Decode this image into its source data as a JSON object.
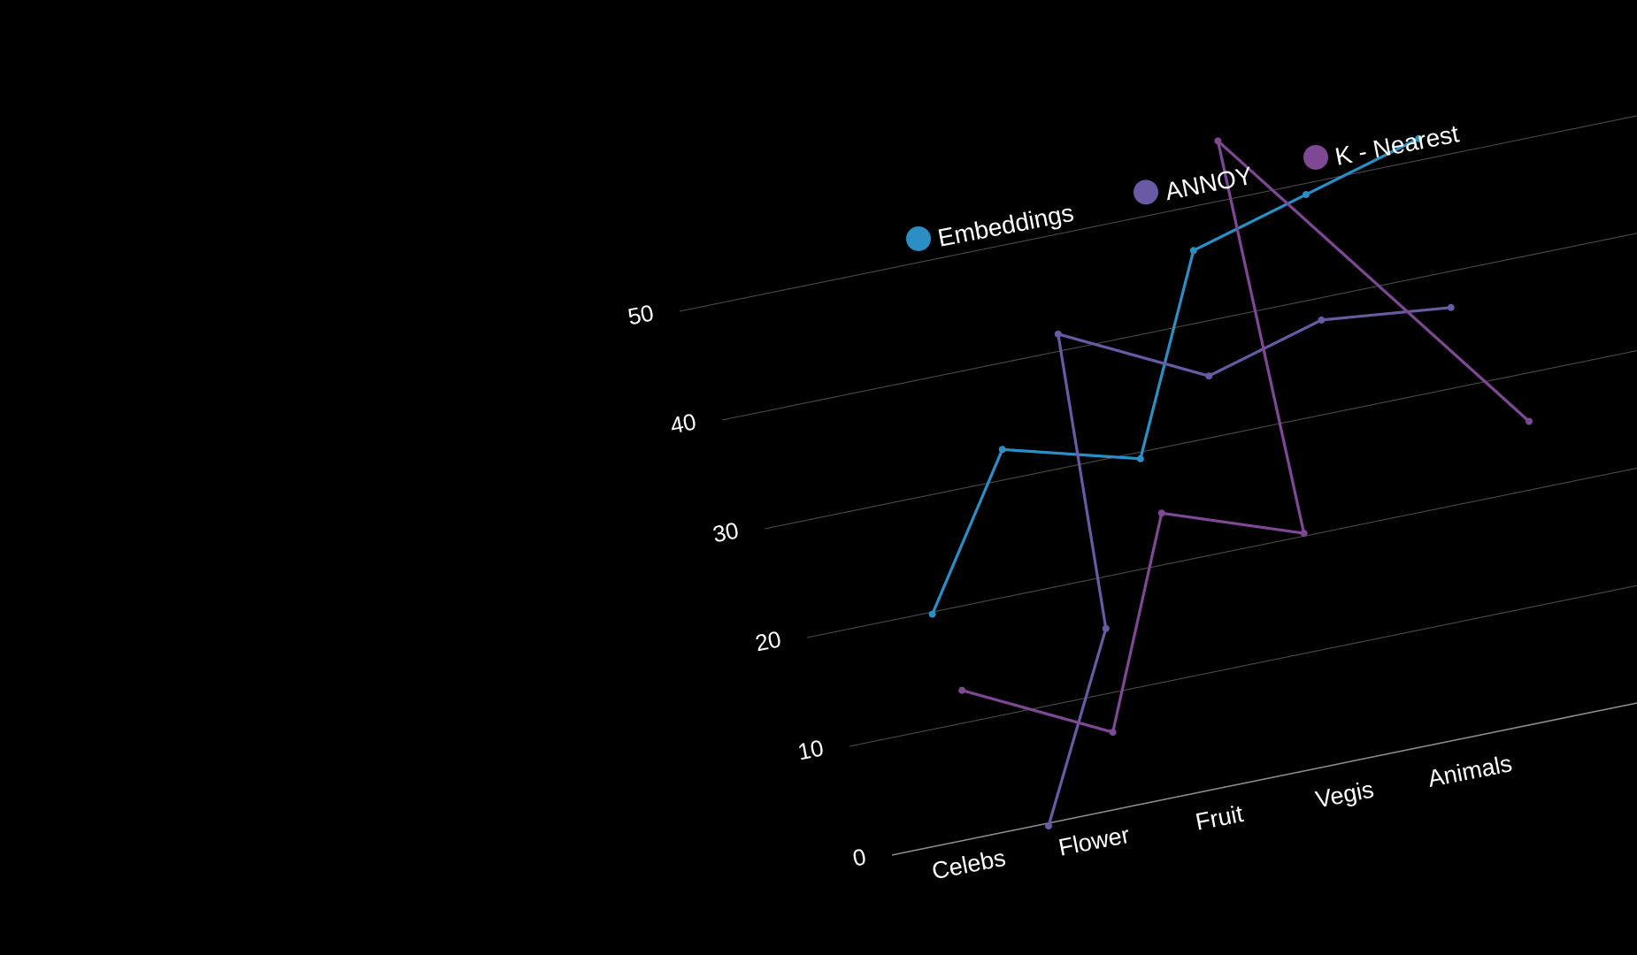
{
  "chart_data": {
    "type": "line",
    "categories": [
      "Celebs",
      "Flower",
      "Fruit",
      "Vegis",
      "Animals"
    ],
    "y_ticks": [
      "0",
      "10",
      "20",
      "30",
      "40",
      "50"
    ],
    "ylim": [
      0,
      50
    ],
    "grid": true,
    "legend_position": "top",
    "series": [
      {
        "name": "Embeddings",
        "color": "#2b8fc6",
        "x": [
          0.8,
          1.6,
          2.4,
          3.2,
          4.0,
          4.8
        ],
        "values": [
          20,
          33,
          30,
          47,
          50,
          53
        ]
      },
      {
        "name": "ANNOY",
        "color": "#6a5aa4",
        "x": [
          1.0,
          1.8,
          2.2,
          3.0,
          3.8,
          4.6
        ],
        "values": [
          0,
          16,
          42,
          36,
          39,
          38
        ]
      },
      {
        "name": "K - Nearest",
        "color": "#7f4895",
        "x": [
          0.8,
          1.6,
          2.4,
          3.2,
          3.6,
          4.8
        ],
        "values": [
          13,
          7,
          25,
          21,
          56,
          27
        ]
      }
    ]
  }
}
